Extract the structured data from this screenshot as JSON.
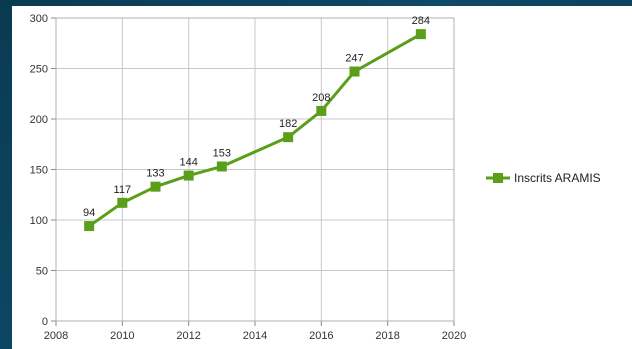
{
  "chart_data": {
    "type": "line",
    "title": "",
    "xlabel": "",
    "ylabel": "",
    "x": [
      2009,
      2010,
      2011,
      2012,
      2013,
      2015,
      2016,
      2017,
      2019
    ],
    "series": [
      {
        "name": "Inscrits ARAMIS",
        "values": [
          94,
          117,
          133,
          144,
          153,
          182,
          208,
          247,
          284
        ],
        "color": "#5a9e1a"
      }
    ],
    "xlim": [
      2008,
      2020
    ],
    "ylim": [
      0,
      300
    ],
    "x_ticks": [
      "2008",
      "2010",
      "2012",
      "2014",
      "2016",
      "2018",
      "2020"
    ],
    "y_ticks": [
      "0",
      "50",
      "100",
      "150",
      "200",
      "250",
      "300"
    ],
    "grid": true,
    "legend_position": "right"
  }
}
